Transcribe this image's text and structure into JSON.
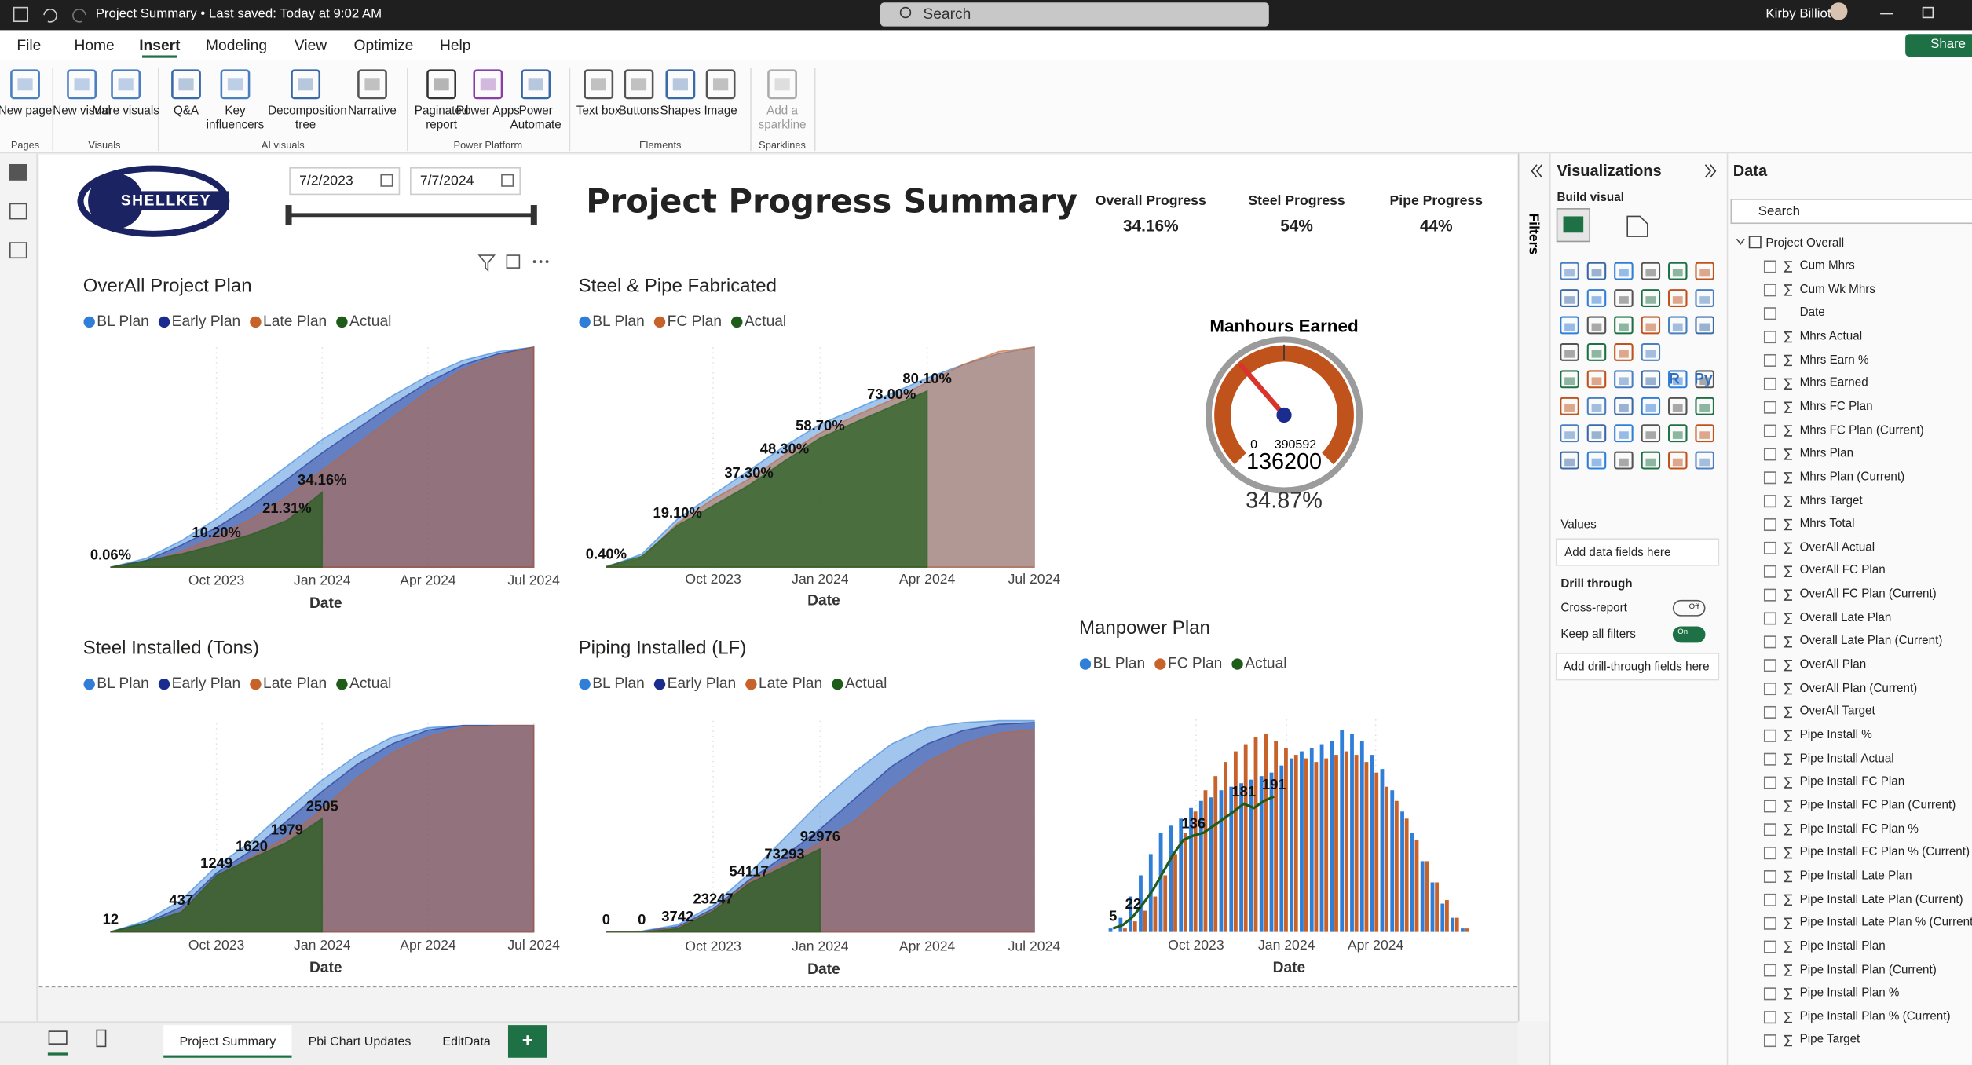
{
  "title_bar": {
    "title": "Project Summary • Last saved: Today at 9:02 AM",
    "search": "Search",
    "user": "Kirby Billiot"
  },
  "menu": [
    "File",
    "Home",
    "Insert",
    "Modeling",
    "View",
    "Optimize",
    "Help"
  ],
  "share": "Share",
  "ribbon": {
    "groups": [
      {
        "label": "Pages",
        "buttons": [
          "New page"
        ]
      },
      {
        "label": "Visuals",
        "buttons": [
          "New visual",
          "More visuals"
        ]
      },
      {
        "label": "AI visuals",
        "buttons": [
          "Q&A",
          "Key influencers",
          "Decomposition tree",
          "Narrative"
        ]
      },
      {
        "label": "Power Platform",
        "buttons": [
          "Paginated report",
          "Power Apps",
          "Power Automate"
        ]
      },
      {
        "label": "Elements",
        "buttons": [
          "Text box",
          "Buttons",
          "Shapes",
          "Image"
        ]
      },
      {
        "label": "Sparklines",
        "buttons": [
          "Add a sparkline"
        ]
      }
    ]
  },
  "report": {
    "logo": "SHELLKEY",
    "slicer": {
      "start": "7/2/2023",
      "end": "7/7/2024"
    },
    "title": "Project Progress Summary",
    "cards": [
      {
        "label": "Overall Progress",
        "value": "34.16%"
      },
      {
        "label": "Steel Progress",
        "value": "54%"
      },
      {
        "label": "Pipe Progress",
        "value": "44%"
      }
    ],
    "gauge": {
      "title": "Manhours Earned",
      "min": 0,
      "max": 390592,
      "value": 136200,
      "percent": "34.87%"
    },
    "charts": [
      {
        "type": "area",
        "title": "OverAll Project Plan",
        "x_title": "Date",
        "x": [
          0,
          1,
          2,
          3,
          4,
          5,
          6,
          7,
          8,
          9,
          10,
          11,
          12
        ],
        "xlim": [
          0,
          12.2
        ],
        "ylim": [
          0,
          100
        ],
        "xticks": [
          {
            "value": 3,
            "label": "Oct 2023"
          },
          {
            "value": 6,
            "label": "Jan 2024"
          },
          {
            "value": 9,
            "label": "Apr 2024"
          },
          {
            "value": 12,
            "label": "Jul 2024"
          }
        ],
        "series": [
          {
            "name": "BL Plan",
            "color": "#2f7ed8",
            "values": [
              0,
              4,
              12,
              22,
              34,
              46,
              58,
              68,
              78,
              87,
              94,
              98,
              100
            ]
          },
          {
            "name": "Early Plan",
            "color": "#1a2d8f",
            "values": [
              0,
              3,
              10,
              18,
              28,
              40,
              52,
              63,
              74,
              84,
              92,
              97,
              100
            ]
          },
          {
            "name": "Late Plan",
            "color": "#c8622b",
            "values": [
              0,
              2,
              7,
              14,
              22,
              32,
              44,
              56,
              68,
              80,
              90,
              96,
              100
            ]
          },
          {
            "name": "Actual",
            "color": "#1f5c1a",
            "values": [
              0.06,
              3,
              6,
              10.2,
              15,
              21.31,
              34.16,
              null,
              null,
              null,
              null,
              null,
              null
            ],
            "value_labels": [
              "0.06%",
              null,
              null,
              "10.20%",
              null,
              "21.31%",
              "34.16%",
              null,
              null,
              null,
              null,
              null,
              null
            ]
          }
        ]
      },
      {
        "type": "area",
        "title": "Steel & Pipe Fabricated",
        "x_title": "Date",
        "x": [
          0,
          1,
          2,
          3,
          4,
          5,
          6,
          7,
          8,
          9,
          10,
          11,
          12
        ],
        "xlim": [
          0,
          12.2
        ],
        "ylim": [
          0,
          100
        ],
        "xticks": [
          {
            "value": 3,
            "label": "Oct 2023"
          },
          {
            "value": 6,
            "label": "Jan 2024"
          },
          {
            "value": 9,
            "label": "Apr 2024"
          },
          {
            "value": 12,
            "label": "Jul 2024"
          }
        ],
        "series": [
          {
            "name": "BL Plan",
            "color": "#2f7ed8",
            "values": [
              0,
              6,
              22,
              33,
              44,
              55,
              65,
              72,
              79,
              86,
              92,
              97,
              100
            ]
          },
          {
            "name": "FC Plan",
            "color": "#c8622b",
            "values": [
              0,
              4,
              20,
              31,
              40,
              51,
              61,
              69,
              76,
              84,
              92,
              98,
              100
            ]
          },
          {
            "name": "Actual",
            "color": "#1f5c1a",
            "values": [
              0.4,
              5,
              19.1,
              28,
              37.3,
              48.3,
              58.7,
              66,
              73,
              80.1,
              null,
              null,
              null
            ],
            "value_labels": [
              "0.40%",
              null,
              "19.10%",
              null,
              "37.30%",
              "48.30%",
              "58.70%",
              null,
              "73.00%",
              "80.10%",
              null,
              null,
              null
            ]
          }
        ]
      },
      {
        "type": "area",
        "title": "Steel Installed (Tons)",
        "x_title": "Date",
        "x": [
          0,
          1,
          2,
          3,
          4,
          5,
          6,
          7,
          8,
          9,
          10,
          11,
          12
        ],
        "xlim": [
          0,
          12.2
        ],
        "ylim": [
          0,
          4600
        ],
        "xticks": [
          {
            "value": 3,
            "label": "Oct 2023"
          },
          {
            "value": 6,
            "label": "Jan 2024"
          },
          {
            "value": 9,
            "label": "Apr 2024"
          },
          {
            "value": 12,
            "label": "Jul 2024"
          }
        ],
        "series": [
          {
            "name": "BL Plan",
            "color": "#2f7ed8",
            "values": [
              0,
              250,
              700,
              1450,
              2000,
              2700,
              3350,
              3900,
              4300,
              4500,
              4550,
              4550,
              4550
            ]
          },
          {
            "name": "Early Plan",
            "color": "#1a2d8f",
            "values": [
              0,
              200,
              550,
              1300,
              1800,
              2450,
              3100,
              3700,
              4150,
              4450,
              4550,
              4550,
              4550
            ]
          },
          {
            "name": "Late Plan",
            "color": "#c8622b",
            "values": [
              0,
              100,
              450,
              1200,
              1650,
              2100,
              2700,
              3400,
              3950,
              4300,
              4500,
              4550,
              4550
            ]
          },
          {
            "name": "Actual",
            "color": "#1f5c1a",
            "values": [
              12,
              200,
              437,
              1249,
              1620,
              1979,
              2505,
              null,
              null,
              null,
              null,
              null,
              null
            ],
            "value_labels": [
              "12",
              null,
              "437",
              "1249",
              "1620",
              "1979",
              "2505",
              null,
              null,
              null,
              null,
              null,
              null
            ]
          }
        ]
      },
      {
        "type": "area",
        "title": "Piping Installed (LF)",
        "x_title": "Date",
        "x": [
          0,
          1,
          2,
          3,
          4,
          5,
          6,
          7,
          8,
          9,
          10,
          11,
          12
        ],
        "xlim": [
          0,
          12.2
        ],
        "ylim": [
          0,
          236000
        ],
        "xticks": [
          {
            "value": 3,
            "label": "Oct 2023"
          },
          {
            "value": 6,
            "label": "Jan 2024"
          },
          {
            "value": 9,
            "label": "Apr 2024"
          },
          {
            "value": 12,
            "label": "Jul 2024"
          }
        ],
        "series": [
          {
            "name": "BL Plan",
            "color": "#2f7ed8",
            "values": [
              0,
              1000,
              8000,
              30000,
              65000,
              105000,
              145000,
              180000,
              210000,
              228000,
              234000,
              236000,
              236000
            ]
          },
          {
            "name": "Early Plan",
            "color": "#1a2d8f",
            "values": [
              0,
              500,
              6000,
              26000,
              58000,
              85000,
              115000,
              150000,
              185000,
              210000,
              225000,
              232000,
              234000
            ]
          },
          {
            "name": "Late Plan",
            "color": "#c8622b",
            "values": [
              0,
              300,
              4500,
              24000,
              56000,
              78000,
              100000,
              125000,
              160000,
              190000,
              210000,
              222000,
              226000
            ]
          },
          {
            "name": "Actual",
            "color": "#1f5c1a",
            "values": [
              0,
              0,
              3742,
              23247,
              54117,
              73293,
              92976,
              null,
              null,
              null,
              null,
              null,
              null
            ],
            "value_labels": [
              "0",
              "0",
              "3742",
              "23247",
              "54117",
              "73293",
              "92976",
              null,
              null,
              null,
              null,
              null,
              null
            ]
          }
        ]
      },
      {
        "type": "combo",
        "title": "Manpower Plan",
        "x_title": "Date",
        "x": [
          0,
          1,
          2,
          3,
          4,
          5,
          6,
          7,
          8,
          9,
          10,
          11,
          12,
          13,
          14,
          15,
          16,
          17,
          18,
          19,
          20,
          21,
          22,
          23,
          24,
          25,
          26,
          27,
          28,
          29,
          30,
          31,
          32,
          33,
          34,
          35
        ],
        "xlim": [
          -0.5,
          35.5
        ],
        "ylim": [
          0,
          300
        ],
        "xticks": [
          {
            "value": 8.25,
            "label": "Oct 2023"
          },
          {
            "value": 17.25,
            "label": "Jan 2024"
          },
          {
            "value": 26.1,
            "label": "Apr 2024"
          }
        ],
        "series": [
          {
            "name": "BL Plan",
            "color": "#2f7ed8",
            "style": "column",
            "values": [
              5,
              20,
              50,
              80,
              110,
              140,
              150,
              160,
              175,
              185,
              190,
              200,
              205,
              210,
              215,
              220,
              225,
              235,
              245,
              255,
              260,
              265,
              270,
              285,
              280,
              270,
              250,
              230,
              200,
              170,
              140,
              100,
              70,
              40,
              20,
              5
            ]
          },
          {
            "name": "FC Plan",
            "color": "#c8622b",
            "style": "column",
            "values": [
              0,
              5,
              15,
              30,
              50,
              80,
              110,
              140,
              170,
              200,
              220,
              240,
              255,
              265,
              275,
              280,
              270,
              260,
              250,
              245,
              240,
              245,
              250,
              255,
              250,
              240,
              225,
              205,
              185,
              160,
              130,
              100,
              70,
              45,
              20,
              5
            ]
          },
          {
            "name": "Actual",
            "color": "#1f5c1a",
            "style": "line",
            "values": [
              5,
              10,
              22,
              40,
              60,
              85,
              110,
              130,
              136,
              140,
              150,
              160,
              170,
              181,
              175,
              185,
              191,
              null,
              null,
              null,
              null,
              null,
              null,
              null,
              null,
              null,
              null,
              null,
              null,
              null,
              null,
              null,
              null,
              null,
              null,
              null
            ],
            "value_labels": [
              "5",
              null,
              "22",
              null,
              null,
              null,
              null,
              null,
              "136",
              null,
              null,
              null,
              null,
              "181",
              null,
              null,
              "191",
              null,
              null,
              null,
              null,
              null,
              null,
              null,
              null,
              null,
              null,
              null,
              null,
              null,
              null,
              null,
              null,
              null,
              null,
              null
            ]
          }
        ]
      }
    ]
  },
  "filters": "Filters",
  "visualizations": {
    "title": "Visualizations",
    "build": "Build visual",
    "r_icon": "R",
    "py_icon": "Py",
    "values": "Values",
    "values_well": "Add data fields here",
    "drill": "Drill through",
    "cross_report": "Cross-report",
    "cross_state": "Off",
    "keep_filters": "Keep all filters",
    "keep_state": "On",
    "drill_well": "Add drill-through fields here"
  },
  "data_pane": {
    "title": "Data",
    "search": "Search",
    "table": "Project Overall",
    "fields": [
      "Cum Mhrs",
      "Cum Wk Mhrs",
      "Date",
      "Mhrs Actual",
      "Mhrs Earn %",
      "Mhrs Earned",
      "Mhrs FC Plan",
      "Mhrs FC Plan (Current)",
      "Mhrs Plan",
      "Mhrs Plan (Current)",
      "Mhrs Target",
      "Mhrs Total",
      "OverAll Actual",
      "OverAll FC Plan",
      "OverAll FC Plan (Current)",
      "Overall Late Plan",
      "Overall Late Plan (Current)",
      "OverAll Plan",
      "OverAll Plan (Current)",
      "OverAll Target",
      "Pipe Install %",
      "Pipe Install Actual",
      "Pipe Install FC Plan",
      "Pipe Install FC Plan (Current)",
      "Pipe Install FC Plan %",
      "Pipe Install FC Plan % (Current)",
      "Pipe Install Late Plan",
      "Pipe Install Late Plan (Current)",
      "Pipe Install Late Plan % (Currently",
      "Pipe Install Plan",
      "Pipe Install Plan (Current)",
      "Pipe Install Plan %",
      "Pipe Install Plan % (Current)",
      "Pipe Target"
    ]
  },
  "tabs": [
    "Project Summary",
    "Pbi Chart Updates",
    "EditData",
    "+"
  ]
}
